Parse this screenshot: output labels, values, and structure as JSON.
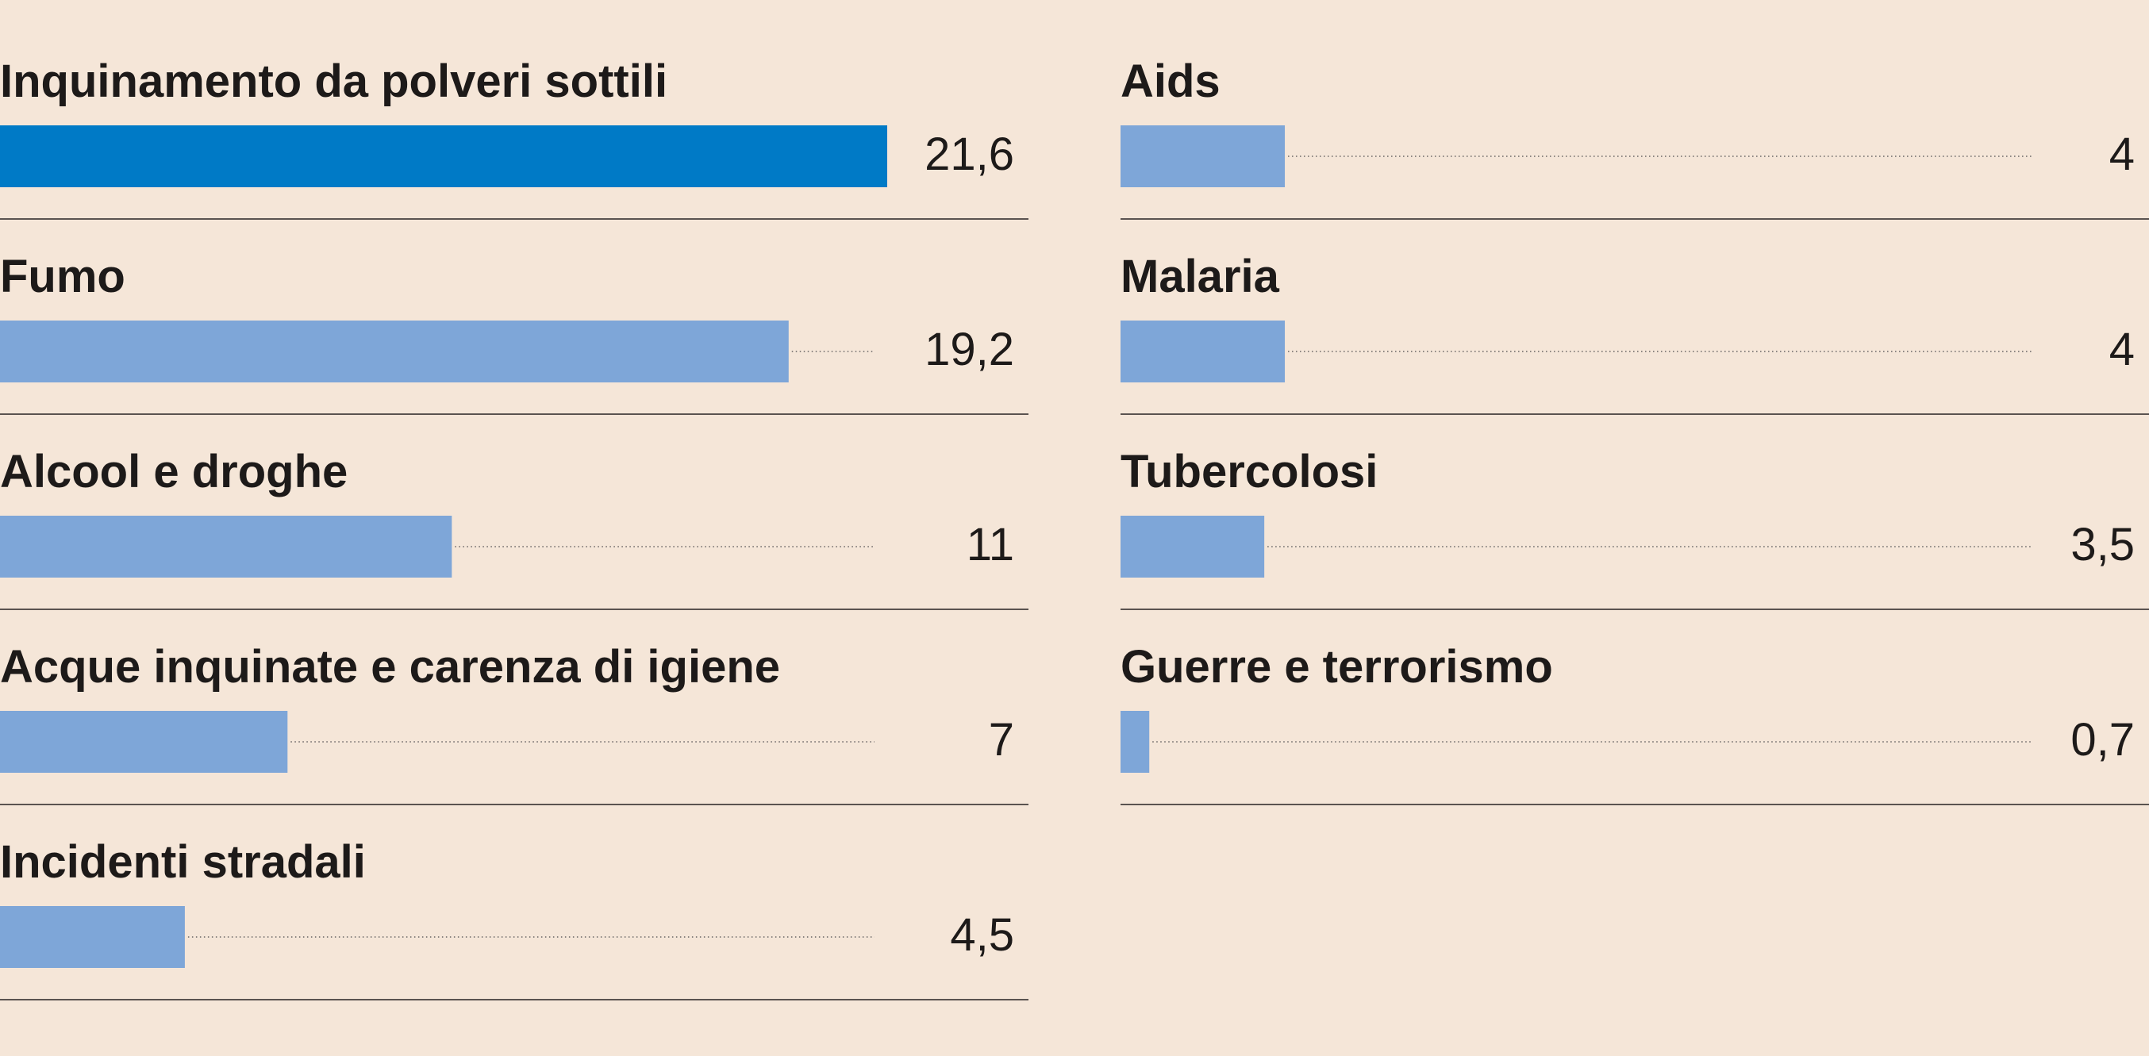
{
  "colors": {
    "background": "#f5e6d8",
    "highlight_bar": "#007ac6",
    "bar": "#7ea6d8",
    "text": "#1d1a19",
    "separator": "#5a5350",
    "leader_dots": "#8a8480"
  },
  "chart_data": {
    "type": "bar",
    "orientation": "horizontal",
    "layout": "two columns",
    "grid": false,
    "legend": "none",
    "xlim": [
      0,
      21.6
    ],
    "categories": [
      "Inquinamento da polveri sottili",
      "Fumo",
      "Alcool e droghe",
      "Acque inquinate e carenza di igiene",
      "Incidenti stradali",
      "Aids",
      "Malaria",
      "Tubercolosi",
      "Guerre e terrorismo"
    ],
    "values": [
      21.6,
      19.2,
      11,
      7,
      4.5,
      4,
      4,
      3.5,
      0.7
    ],
    "value_labels": [
      "21,6",
      "19,2",
      "11",
      "7",
      "4,5",
      "4",
      "4",
      "3,5",
      "0,7"
    ],
    "highlighted": [
      "Inquinamento da polveri sottili"
    ],
    "columns": [
      {
        "categories": [
          "Inquinamento da polveri sottili",
          "Fumo",
          "Alcool e droghe",
          "Acque inquinate e carenza di igiene",
          "Incidenti stradali"
        ]
      },
      {
        "categories": [
          "Aids",
          "Malaria",
          "Tubercolosi",
          "Guerre e terrorismo"
        ]
      }
    ]
  }
}
